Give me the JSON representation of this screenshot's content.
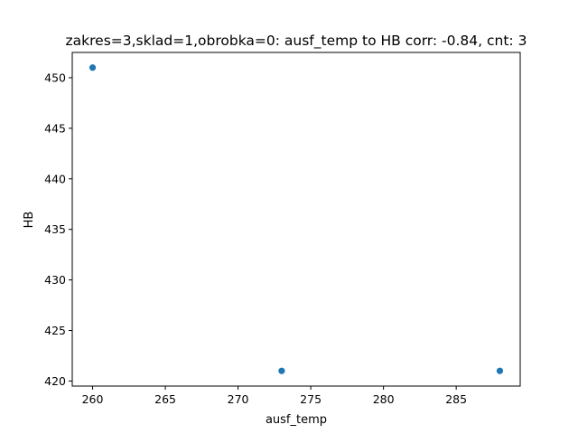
{
  "chart_data": {
    "type": "scatter",
    "title": "zakres=3,sklad=1,obrobka=0: ausf_temp to HB corr: -0.84, cnt: 3",
    "xlabel": "ausf_temp",
    "ylabel": "HB",
    "xlim": [
      258.6,
      289.4
    ],
    "ylim": [
      419.5,
      452.5
    ],
    "xticks": [
      260,
      265,
      270,
      275,
      280,
      285
    ],
    "yticks": [
      420,
      425,
      430,
      435,
      440,
      445,
      450
    ],
    "points": [
      {
        "x": 260,
        "y": 451
      },
      {
        "x": 273,
        "y": 421
      },
      {
        "x": 288,
        "y": 421
      }
    ],
    "grid": false,
    "marker_color": "#1f77b4"
  }
}
